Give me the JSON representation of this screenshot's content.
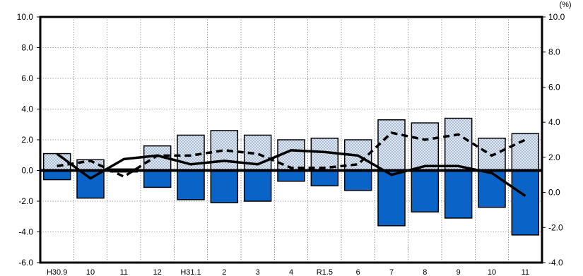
{
  "chart_data": {
    "type": "bar",
    "title": "",
    "xlabel": "",
    "ylabel": "",
    "y2label": "",
    "unit_right_top": "(%)",
    "grid": true,
    "categories": [
      "H30.9",
      "10",
      "11",
      "12",
      "H31.1",
      "2",
      "3",
      "4",
      "R1.5",
      "6",
      "7",
      "8",
      "9",
      "10",
      "11"
    ],
    "left_axis": {
      "range": [
        -6.0,
        10.0
      ],
      "ticks": [
        -6.0,
        -4.0,
        -2.0,
        0.0,
        2.0,
        4.0,
        6.0,
        8.0,
        10.0
      ],
      "tick_labels": [
        "-6.0",
        "-4.0",
        "-2.0",
        "0.0",
        "2.0",
        "4.0",
        "6.0",
        "8.0",
        "10.0"
      ]
    },
    "right_axis": {
      "range": [
        -4.0,
        10.0
      ],
      "ticks": [
        -4.0,
        -2.0,
        0.0,
        2.0,
        4.0,
        6.0,
        8.0,
        10.0
      ],
      "tick_labels": [
        "-4.0",
        "-2.0",
        "0.0",
        "2.0",
        "4.0",
        "6.0",
        "8.0",
        "10.0"
      ]
    },
    "series": [
      {
        "kind": "bar",
        "style": "dotted",
        "axis": "left",
        "color": "#dde8f4",
        "values": [
          1.1,
          0.7,
          0.1,
          1.6,
          2.3,
          2.6,
          2.3,
          2.0,
          2.1,
          2.0,
          3.3,
          3.1,
          3.4,
          2.1,
          2.4
        ]
      },
      {
        "kind": "bar",
        "style": "solid",
        "axis": "left",
        "color": "#0a64c8",
        "values": [
          -0.6,
          -1.8,
          -0.1,
          -1.1,
          -1.9,
          -2.1,
          -2.0,
          -0.7,
          -1.0,
          -1.3,
          -3.6,
          -2.7,
          -3.1,
          -2.4,
          -4.2
        ]
      },
      {
        "kind": "line",
        "style": "solid",
        "axis": "right",
        "color": "#000000",
        "values": [
          2.2,
          0.8,
          1.9,
          2.1,
          1.6,
          1.8,
          1.6,
          2.4,
          2.3,
          2.1,
          1.0,
          1.5,
          1.5,
          1.1,
          -0.2
        ]
      },
      {
        "kind": "line",
        "style": "dashed",
        "axis": "right",
        "color": "#000000",
        "values": [
          1.5,
          1.8,
          0.9,
          2.1,
          2.1,
          2.4,
          2.2,
          1.4,
          1.4,
          1.6,
          3.4,
          3.0,
          3.3,
          2.1,
          3.0
        ]
      }
    ]
  }
}
